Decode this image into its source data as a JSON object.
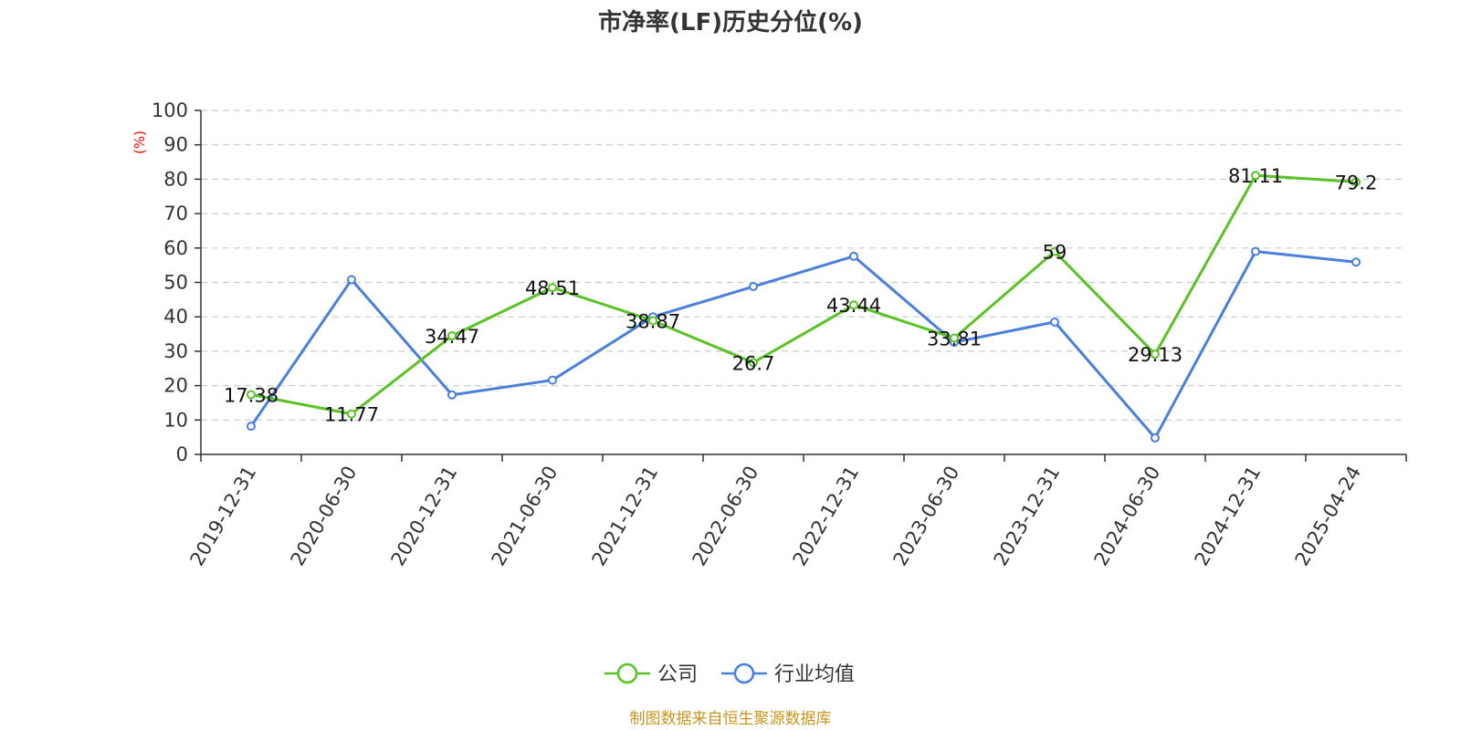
{
  "source": "制图数据来自恒生聚源数据库",
  "chart_data": {
    "type": "line",
    "title": "市净率(LF)历史分位(%)",
    "unit_label": "(%)",
    "categories": [
      "2019-12-31",
      "2020-06-30",
      "2020-12-31",
      "2021-06-30",
      "2021-12-31",
      "2022-06-30",
      "2022-12-31",
      "2023-06-30",
      "2023-12-31",
      "2024-06-30",
      "2024-12-31",
      "2025-04-24"
    ],
    "yticks": [
      0,
      10,
      20,
      30,
      40,
      50,
      60,
      70,
      80,
      90,
      100
    ],
    "ylim": [
      0,
      100
    ],
    "grid": true,
    "legend_position": "bottom",
    "series": [
      {
        "name": "公司",
        "color": "#5ac224",
        "show_labels": true,
        "values": [
          17.38,
          11.77,
          34.47,
          48.51,
          38.87,
          26.7,
          43.44,
          33.81,
          59,
          29.13,
          81.11,
          79.2
        ],
        "labels": [
          "17.38",
          "11.77",
          "34.47",
          "48.51",
          "38.87",
          "26.7",
          "43.44",
          "33.81",
          "59",
          "29.13",
          "81.11",
          "79.2"
        ]
      },
      {
        "name": "行业均值",
        "color": "#4a7fdc",
        "show_labels": false,
        "values": [
          8.2,
          50.8,
          17.3,
          21.6,
          40.0,
          48.8,
          57.6,
          32.6,
          38.5,
          4.8,
          59.0,
          55.9
        ]
      }
    ]
  }
}
